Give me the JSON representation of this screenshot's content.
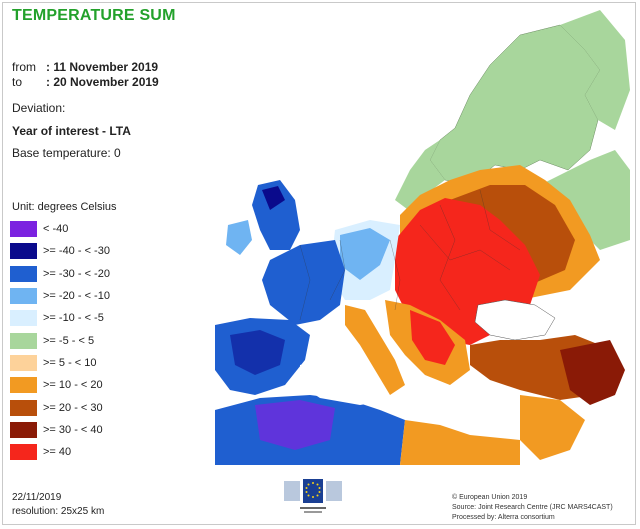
{
  "title": "TEMPERATURE SUM",
  "period": {
    "from_label": "from",
    "from_value": ": 11 November 2019",
    "to_label": "to",
    "to_value": ": 20 November 2019"
  },
  "deviation_label": "Deviation:",
  "comparison": "Year of interest - LTA",
  "base_temperature": "Base temperature: 0",
  "unit": "Unit: degrees Celsius",
  "legend": [
    {
      "label": "< -40",
      "color": "#7b22e0"
    },
    {
      "label": ">= -40 - < -30",
      "color": "#0a0a8c"
    },
    {
      "label": ">= -30 - < -20",
      "color": "#1f5fd0"
    },
    {
      "label": ">= -20 - < -10",
      "color": "#6fb4f2"
    },
    {
      "label": ">= -10 - < -5",
      "color": "#d9efff"
    },
    {
      "label": ">= -5 - < 5",
      "color": "#a8d69c"
    },
    {
      "label": ">= 5 - < 10",
      "color": "#fdd29a"
    },
    {
      "label": ">= 10 - < 20",
      "color": "#f29a22"
    },
    {
      "label": ">= 20 - < 30",
      "color": "#b84f0b"
    },
    {
      "label": ">= 30 - < 40",
      "color": "#8a1a06"
    },
    {
      "label": ">= 40",
      "color": "#f5261c"
    }
  ],
  "date": "22/11/2019",
  "resolution": "resolution: 25x25 km",
  "credits": [
    "© European Union 2019",
    "Source: Joint Research Centre (JRC MARS4CAST)",
    "Processed by: Alterra consortium"
  ],
  "logo_icon": "european-commission-logo"
}
